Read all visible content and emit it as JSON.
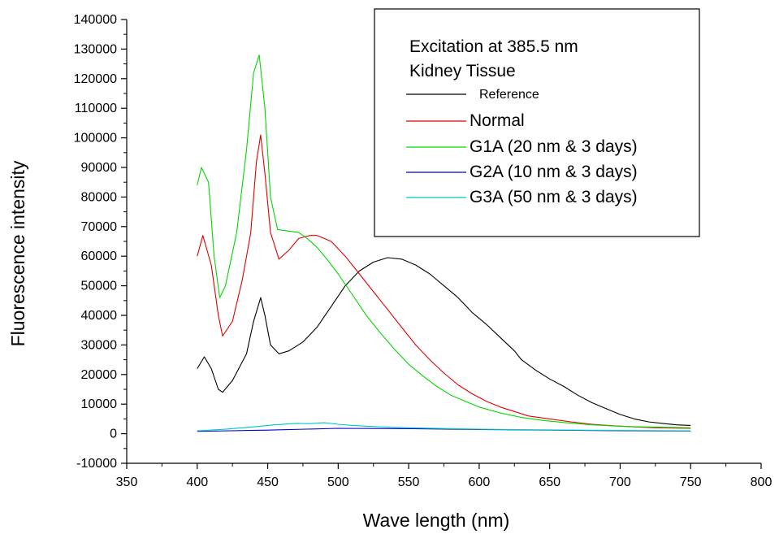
{
  "chart_data": {
    "type": "line",
    "xlabel": "Wave length (nm)",
    "ylabel": "Fluorescence intensity",
    "xlim": [
      350,
      800
    ],
    "ylim": [
      -10000,
      140000
    ],
    "xticks": [
      350,
      400,
      450,
      500,
      550,
      600,
      650,
      700,
      750,
      800
    ],
    "xtick_labels": [
      "350",
      "400",
      "450",
      "500",
      "550",
      "600",
      "650",
      "700",
      "750",
      "800"
    ],
    "yticks": [
      -10000,
      0,
      10000,
      20000,
      30000,
      40000,
      50000,
      60000,
      70000,
      80000,
      90000,
      100000,
      110000,
      120000,
      130000,
      140000
    ],
    "ytick_labels": [
      "-10000",
      "0",
      "10000",
      "20000",
      "30000",
      "40000",
      "50000",
      "60000",
      "70000",
      "80000",
      "90000",
      "100000",
      "110000",
      "120000",
      "130000",
      "140000"
    ],
    "grid": false,
    "legend_position": "top-right",
    "legend_title_lines": [
      "Excitation at 385.5 nm",
      "Kidney Tissue"
    ],
    "series": [
      {
        "name": "Reference",
        "color": "#000000",
        "x": [
          400,
          405,
          410,
          415,
          418,
          425,
          435,
          440,
          445,
          448,
          452,
          458,
          465,
          475,
          485,
          495,
          505,
          515,
          525,
          535,
          545,
          555,
          565,
          575,
          585,
          595,
          605,
          615,
          625,
          630,
          640,
          650,
          660,
          670,
          680,
          690,
          700,
          710,
          720,
          730,
          740,
          750
        ],
        "y": [
          22000,
          26000,
          22000,
          15000,
          14000,
          18000,
          27000,
          38000,
          46000,
          40000,
          30000,
          27000,
          28000,
          31000,
          36000,
          43000,
          50000,
          55000,
          58000,
          59500,
          59000,
          57000,
          54000,
          50000,
          46000,
          41000,
          37000,
          32500,
          28000,
          25000,
          21500,
          18500,
          16000,
          13000,
          10500,
          8500,
          6500,
          5000,
          4000,
          3500,
          3000,
          2800
        ]
      },
      {
        "name": "Normal",
        "color": "#e00000",
        "x": [
          400,
          404,
          410,
          415,
          418,
          425,
          432,
          438,
          442,
          445,
          448,
          452,
          458,
          465,
          472,
          480,
          485,
          490,
          495,
          505,
          515,
          525,
          535,
          545,
          555,
          565,
          575,
          585,
          595,
          605,
          615,
          625,
          635,
          650,
          665,
          680,
          695,
          710,
          725,
          740,
          750
        ],
        "y": [
          60000,
          67000,
          57000,
          40000,
          33000,
          38000,
          52000,
          68000,
          92000,
          101000,
          88000,
          68000,
          59000,
          62000,
          66000,
          67000,
          67000,
          66000,
          65000,
          60000,
          54000,
          48000,
          42000,
          36000,
          30000,
          25000,
          20500,
          16500,
          13500,
          11000,
          9000,
          7500,
          6000,
          5000,
          4000,
          3200,
          2700,
          2300,
          2000,
          1900,
          1800
        ]
      },
      {
        "name": "G1A (20 nm & 3 days)",
        "color": "#00d800",
        "x": [
          400,
          403,
          408,
          412,
          416,
          420,
          428,
          435,
          440,
          444,
          448,
          452,
          457,
          465,
          472,
          478,
          485,
          492,
          500,
          510,
          520,
          530,
          540,
          550,
          560,
          570,
          580,
          590,
          600,
          615,
          630,
          645,
          660,
          680,
          700,
          725,
          750
        ],
        "y": [
          84000,
          90000,
          85000,
          60000,
          46000,
          50000,
          68000,
          96000,
          122000,
          128000,
          110000,
          80000,
          69000,
          68500,
          68000,
          66000,
          63000,
          59000,
          54000,
          47000,
          40000,
          34000,
          28500,
          23500,
          19500,
          16000,
          13000,
          11000,
          9000,
          7000,
          5500,
          4500,
          3800,
          3000,
          2500,
          2200,
          2000
        ]
      },
      {
        "name": "G2A (10 nm & 3 days)",
        "color": "#0000c8",
        "x": [
          400,
          450,
          500,
          550,
          600,
          650,
          700,
          750
        ],
        "y": [
          800,
          1200,
          1800,
          1700,
          1400,
          1200,
          1000,
          900
        ]
      },
      {
        "name": "G3A (50 nm & 3 days)",
        "color": "#00c8c8",
        "x": [
          400,
          420,
          440,
          455,
          470,
          480,
          490,
          500,
          510,
          530,
          550,
          580,
          600,
          650,
          700,
          750
        ],
        "y": [
          1000,
          1500,
          2300,
          3000,
          3500,
          3400,
          3700,
          3200,
          2800,
          2300,
          2000,
          1700,
          1500,
          1300,
          1100,
          1000
        ]
      }
    ]
  }
}
